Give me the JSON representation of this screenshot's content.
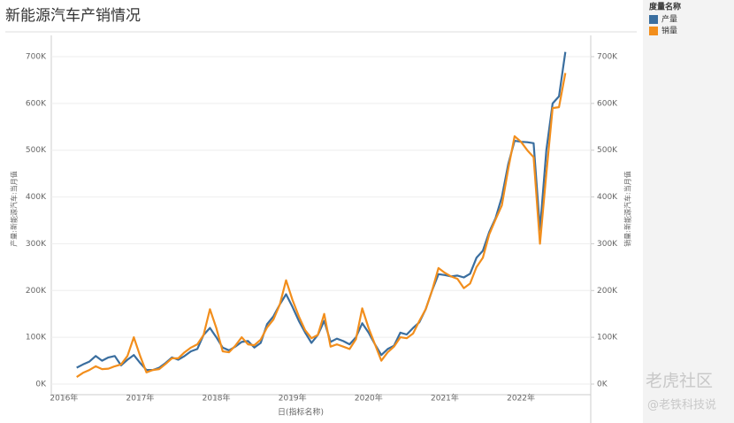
{
  "chart_data": {
    "type": "line",
    "title": "新能源汽车产销情况",
    "legend_title": "度量名称",
    "legend_position": "right",
    "y_label": "产量:新能源汽车:当月值",
    "y2_label": "销量:新能源汽车:当月值",
    "x_label": "日(指标名称)",
    "x": [
      "2016-03",
      "2016-04",
      "2016-05",
      "2016-06",
      "2016-07",
      "2016-08",
      "2016-09",
      "2016-10",
      "2016-11",
      "2016-12",
      "2017-01",
      "2017-02",
      "2017-03",
      "2017-04",
      "2017-05",
      "2017-06",
      "2017-07",
      "2017-08",
      "2017-09",
      "2017-10",
      "2017-11",
      "2017-12",
      "2018-01",
      "2018-02",
      "2018-03",
      "2018-04",
      "2018-05",
      "2018-06",
      "2018-07",
      "2018-08",
      "2018-09",
      "2018-10",
      "2018-11",
      "2018-12",
      "2019-01",
      "2019-02",
      "2019-03",
      "2019-04",
      "2019-05",
      "2019-06",
      "2019-07",
      "2019-08",
      "2019-09",
      "2019-10",
      "2019-11",
      "2019-12",
      "2020-01",
      "2020-02",
      "2020-03",
      "2020-04",
      "2020-05",
      "2020-06",
      "2020-07",
      "2020-08",
      "2020-09",
      "2020-10",
      "2020-11",
      "2020-12",
      "2021-01",
      "2021-02",
      "2021-03",
      "2021-04",
      "2021-05",
      "2021-06",
      "2021-07",
      "2021-08",
      "2021-09",
      "2021-10",
      "2021-11",
      "2021-12",
      "2022-01",
      "2022-02",
      "2022-03",
      "2022-04",
      "2022-05",
      "2022-06",
      "2022-07",
      "2022-08"
    ],
    "series": [
      {
        "name": "产量",
        "color": "#3a6e9f",
        "values": [
          35000,
          42000,
          48000,
          60000,
          50000,
          57000,
          60000,
          40000,
          52000,
          62000,
          45000,
          30000,
          30000,
          35000,
          45000,
          57000,
          52000,
          60000,
          70000,
          75000,
          105000,
          120000,
          100000,
          78000,
          72000,
          80000,
          90000,
          92000,
          78000,
          88000,
          128000,
          145000,
          170000,
          192000,
          165000,
          135000,
          110000,
          88000,
          105000,
          135000,
          90000,
          97000,
          92000,
          85000,
          100000,
          130000,
          110000,
          85000,
          62000,
          75000,
          82000,
          110000,
          106000,
          120000,
          132000,
          160000,
          200000,
          235000,
          233000,
          230000,
          232000,
          228000,
          236000,
          270000,
          285000,
          325000,
          355000,
          400000,
          470000,
          520000,
          518000,
          517000,
          515000,
          330000,
          500000,
          600000,
          615000,
          710000
        ]
      },
      {
        "name": "销量",
        "color": "#f28e1c",
        "axis": "y2",
        "values": [
          15000,
          24000,
          30000,
          38000,
          32000,
          33000,
          38000,
          42000,
          60000,
          100000,
          60000,
          25000,
          30000,
          32000,
          43000,
          55000,
          55000,
          68000,
          78000,
          85000,
          105000,
          160000,
          120000,
          70000,
          68000,
          82000,
          100000,
          85000,
          83000,
          95000,
          121000,
          138000,
          170000,
          222000,
          180000,
          145000,
          115000,
          98000,
          105000,
          150000,
          80000,
          85000,
          80000,
          75000,
          96000,
          162000,
          120000,
          85000,
          50000,
          68000,
          80000,
          100000,
          98000,
          108000,
          135000,
          160000,
          200000,
          248000,
          238000,
          230000,
          225000,
          205000,
          215000,
          250000,
          270000,
          320000,
          352000,
          382000,
          460000,
          530000,
          518000,
          500000,
          485000,
          300000,
          450000,
          590000,
          592000,
          665000
        ]
      }
    ],
    "xlim": [
      "2015-11",
      "2022-12"
    ],
    "xticks": [
      {
        "value": "2016-01",
        "label": "2016年"
      },
      {
        "value": "2017-01",
        "label": "2017年"
      },
      {
        "value": "2018-01",
        "label": "2018年"
      },
      {
        "value": "2019-01",
        "label": "2019年"
      },
      {
        "value": "2020-01",
        "label": "2020年"
      },
      {
        "value": "2021-01",
        "label": "2021年"
      },
      {
        "value": "2022-01",
        "label": "2022年"
      }
    ],
    "ylim": [
      0,
      700000
    ],
    "yticks": [
      {
        "value": 0,
        "label": "0K"
      },
      {
        "value": 100000,
        "label": "100K"
      },
      {
        "value": 200000,
        "label": "200K"
      },
      {
        "value": 300000,
        "label": "300K"
      },
      {
        "value": 400000,
        "label": "400K"
      },
      {
        "value": 500000,
        "label": "500K"
      },
      {
        "value": 600000,
        "label": "600K"
      },
      {
        "value": 700000,
        "label": "700K"
      }
    ],
    "y2lim": [
      0,
      700000
    ],
    "y2ticks": [
      {
        "value": 0,
        "label": "0K"
      },
      {
        "value": 100000,
        "label": "100K"
      },
      {
        "value": 200000,
        "label": "200K"
      },
      {
        "value": 300000,
        "label": "300K"
      },
      {
        "value": 400000,
        "label": "400K"
      },
      {
        "value": 500000,
        "label": "500K"
      },
      {
        "value": 600000,
        "label": "600K"
      },
      {
        "value": 700000,
        "label": "700K"
      }
    ],
    "grid": true
  },
  "watermark": {
    "brand": "老虎社区",
    "author": "@老铁科技说"
  }
}
